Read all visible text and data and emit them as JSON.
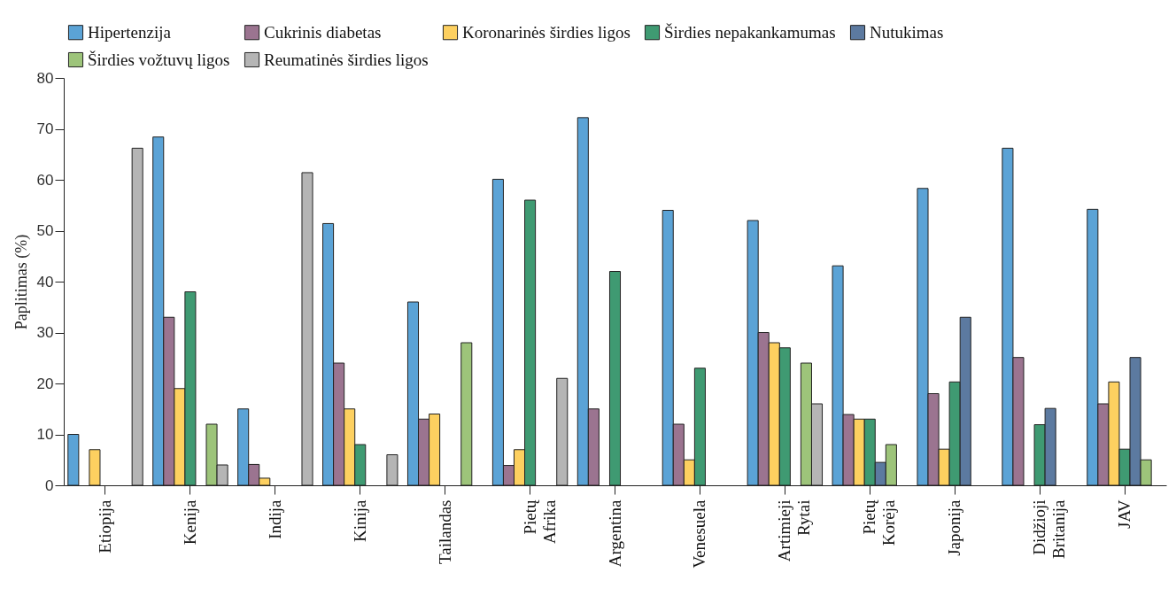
{
  "chart_data": {
    "type": "bar",
    "ylabel": "Paplitimas (%)",
    "categories": [
      "Etiopija",
      "Kenija",
      "Indija",
      "Kinija",
      "Tailandas",
      "Pietų Afrika",
      "Argentina",
      "Venesuela",
      "Artimieji Rytai",
      "Pietų Korėja",
      "Japonija",
      "Didžioji Britanija",
      "JAV"
    ],
    "ylim": [
      0,
      80
    ],
    "yticks": [
      0,
      10,
      20,
      30,
      40,
      50,
      60,
      70,
      80
    ],
    "legend": "top",
    "series": [
      {
        "name": "Hipertenzija",
        "color": "#5ba3d6",
        "values": [
          10,
          68.4,
          15,
          51.4,
          36,
          60.1,
          72.2,
          54,
          52,
          43.1,
          58.3,
          66.2,
          54.2
        ]
      },
      {
        "name": "Cukrinis diabetas",
        "color": "#9b7490",
        "values": [
          null,
          33,
          4.1,
          24,
          13,
          3.9,
          15,
          12,
          30,
          13.9,
          18,
          25.1,
          16
        ]
      },
      {
        "name": "Koronarinės širdies ligos",
        "color": "#fdd060",
        "values": [
          7,
          19,
          1.4,
          15,
          14,
          7,
          null,
          5,
          28,
          13,
          7.1,
          null,
          20.3
        ]
      },
      {
        "name": "Širdies nepakankamumas",
        "color": "#3f9a72",
        "values": [
          null,
          38,
          null,
          8,
          null,
          56,
          42,
          23,
          27,
          13,
          20.3,
          11.9,
          7.1
        ]
      },
      {
        "name": "Nutukimas",
        "color": "#5c7aa0",
        "values": [
          null,
          null,
          null,
          null,
          null,
          null,
          null,
          null,
          null,
          4.5,
          33,
          15.1,
          25.1
        ]
      },
      {
        "name": "Širdies vožtuvų ligos",
        "color": "#9dc47a",
        "values": [
          null,
          12,
          null,
          null,
          28,
          null,
          null,
          null,
          24,
          8,
          null,
          null,
          5
        ]
      },
      {
        "name": "Reumatinės širdies ligos",
        "color": "#b5b5b5",
        "values": [
          66.2,
          4,
          61.4,
          6,
          null,
          21,
          null,
          null,
          16,
          null,
          null,
          null,
          null
        ]
      }
    ]
  }
}
